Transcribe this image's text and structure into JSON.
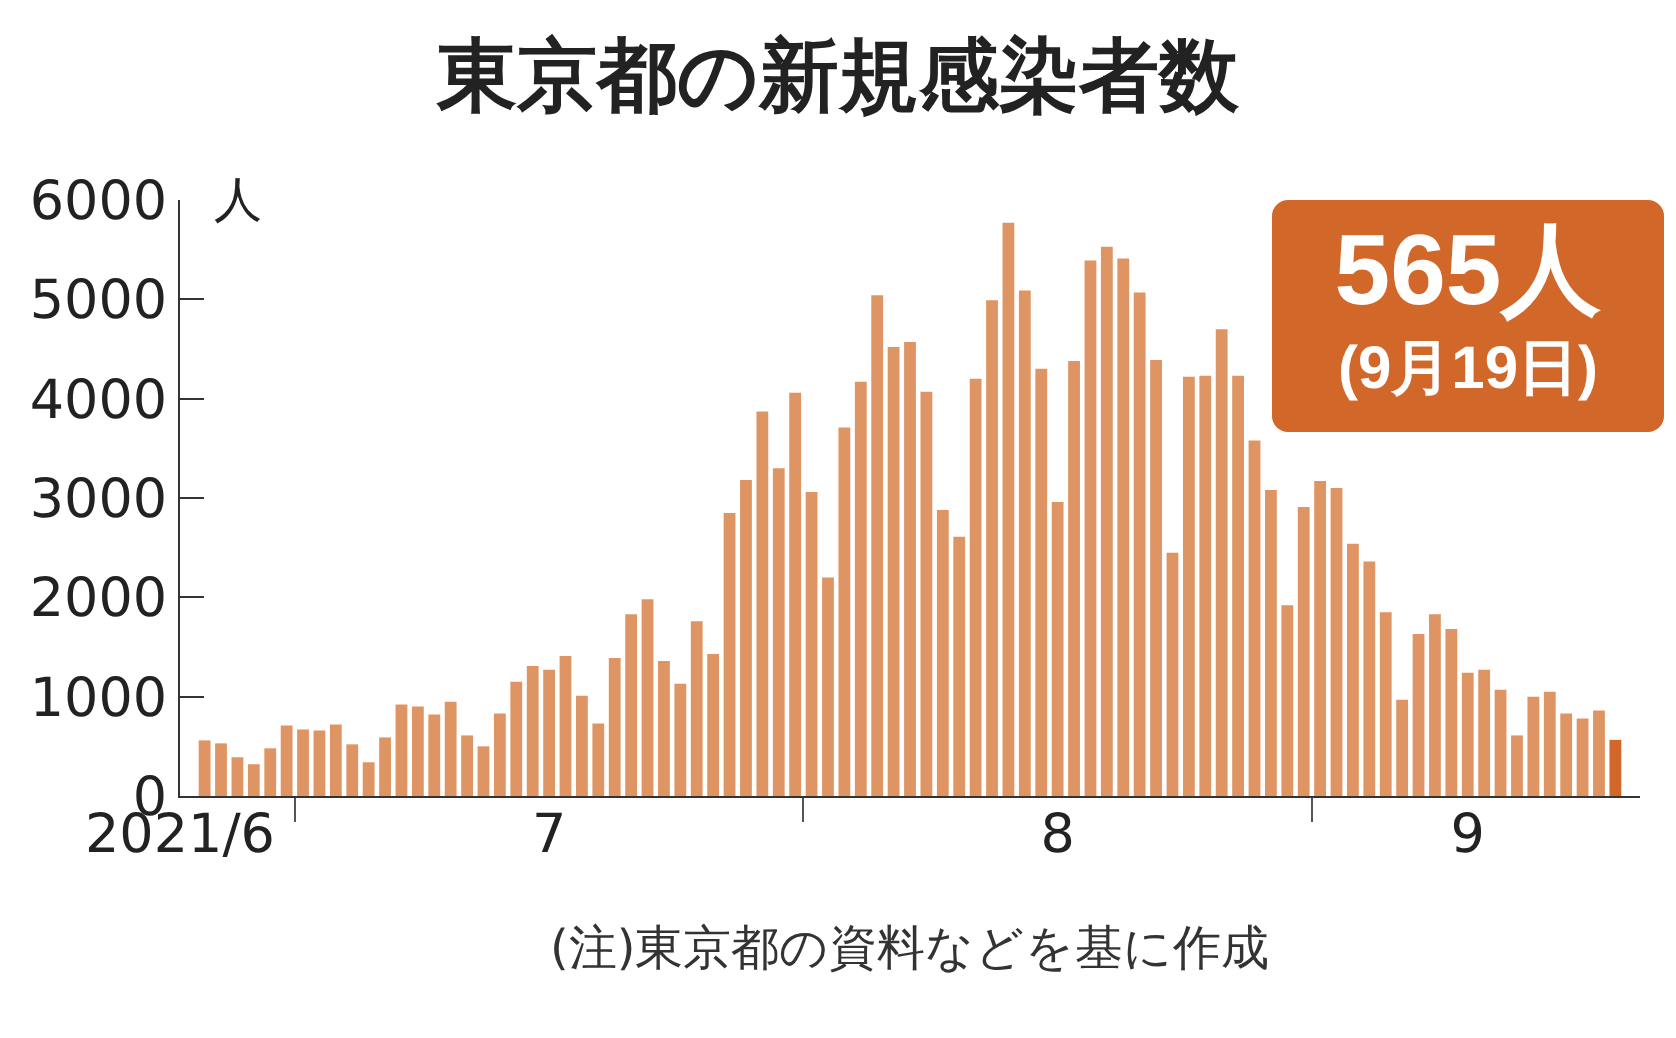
{
  "chart_data": {
    "type": "bar",
    "title": "東京都の新規感染者数",
    "ylabel": "人",
    "x": [
      "2021-06-25",
      "2021-06-26",
      "2021-06-27",
      "2021-06-28",
      "2021-06-29",
      "2021-06-30",
      "2021-07-01",
      "2021-07-02",
      "2021-07-03",
      "2021-07-04",
      "2021-07-05",
      "2021-07-06",
      "2021-07-07",
      "2021-07-08",
      "2021-07-09",
      "2021-07-10",
      "2021-07-11",
      "2021-07-12",
      "2021-07-13",
      "2021-07-14",
      "2021-07-15",
      "2021-07-16",
      "2021-07-17",
      "2021-07-18",
      "2021-07-19",
      "2021-07-20",
      "2021-07-21",
      "2021-07-22",
      "2021-07-23",
      "2021-07-24",
      "2021-07-25",
      "2021-07-26",
      "2021-07-27",
      "2021-07-28",
      "2021-07-29",
      "2021-07-30",
      "2021-07-31",
      "2021-08-01",
      "2021-08-02",
      "2021-08-03",
      "2021-08-04",
      "2021-08-05",
      "2021-08-06",
      "2021-08-07",
      "2021-08-08",
      "2021-08-09",
      "2021-08-10",
      "2021-08-11",
      "2021-08-12",
      "2021-08-13",
      "2021-08-14",
      "2021-08-15",
      "2021-08-16",
      "2021-08-17",
      "2021-08-18",
      "2021-08-19",
      "2021-08-20",
      "2021-08-21",
      "2021-08-22",
      "2021-08-23",
      "2021-08-24",
      "2021-08-25",
      "2021-08-26",
      "2021-08-27",
      "2021-08-28",
      "2021-08-29",
      "2021-08-30",
      "2021-08-31",
      "2021-09-01",
      "2021-09-02",
      "2021-09-03",
      "2021-09-04",
      "2021-09-05",
      "2021-09-06",
      "2021-09-07",
      "2021-09-08",
      "2021-09-09",
      "2021-09-10",
      "2021-09-11",
      "2021-09-12",
      "2021-09-13",
      "2021-09-14",
      "2021-09-15",
      "2021-09-16",
      "2021-09-17",
      "2021-09-18",
      "2021-09-19"
    ],
    "values": [
      560,
      530,
      390,
      320,
      480,
      710,
      670,
      660,
      720,
      520,
      340,
      590,
      920,
      900,
      820,
      950,
      610,
      500,
      830,
      1150,
      1310,
      1270,
      1410,
      1010,
      730,
      1390,
      1830,
      1980,
      1360,
      1130,
      1760,
      1430,
      2850,
      3180,
      3870,
      3300,
      4060,
      3060,
      2200,
      3710,
      4170,
      5040,
      4520,
      4570,
      4070,
      2880,
      2610,
      4200,
      4990,
      5770,
      5090,
      4300,
      2960,
      4380,
      5390,
      5530,
      5410,
      5070,
      4390,
      2450,
      4220,
      4230,
      4700,
      4230,
      3580,
      3080,
      1920,
      2910,
      3170,
      3100,
      2540,
      2360,
      1850,
      970,
      1630,
      1830,
      1680,
      1240,
      1270,
      1070,
      610,
      1000,
      1050,
      830,
      780,
      860,
      565
    ],
    "colors": [
      "#df9563",
      "#df9563",
      "#df9563",
      "#df9563",
      "#df9563",
      "#df9563",
      "#df9563",
      "#df9563",
      "#df9563",
      "#df9563",
      "#df9563",
      "#df9563",
      "#df9563",
      "#df9563",
      "#df9563",
      "#df9563",
      "#df9563",
      "#df9563",
      "#df9563",
      "#df9563",
      "#df9563",
      "#df9563",
      "#df9563",
      "#df9563",
      "#df9563",
      "#df9563",
      "#df9563",
      "#df9563",
      "#df9563",
      "#df9563",
      "#df9563",
      "#df9563",
      "#df9563",
      "#df9563",
      "#df9563",
      "#df9563",
      "#df9563",
      "#df9563",
      "#df9563",
      "#df9563",
      "#df9563",
      "#df9563",
      "#df9563",
      "#df9563",
      "#df9563",
      "#df9563",
      "#df9563",
      "#df9563",
      "#df9563",
      "#df9563",
      "#df9563",
      "#df9563",
      "#df9563",
      "#df9563",
      "#df9563",
      "#df9563",
      "#df9563",
      "#df9563",
      "#df9563",
      "#df9563",
      "#df9563",
      "#df9563",
      "#df9563",
      "#df9563",
      "#df9563",
      "#df9563",
      "#df9563",
      "#df9563",
      "#df9563",
      "#df9563",
      "#df9563",
      "#df9563",
      "#df9563",
      "#df9563",
      "#df9563",
      "#df9563",
      "#df9563",
      "#df9563",
      "#df9563",
      "#df9563",
      "#df9563",
      "#df9563",
      "#df9563",
      "#df9563",
      "#df9563",
      "#df9563",
      "#d2672a"
    ],
    "xlim": [
      "2021-06-23T12:00",
      "2021-09-20T12:00"
    ],
    "xticks": [
      {
        "value": "2021-06-30T12:00",
        "label": null
      },
      {
        "value": "2021-07-31T12:00",
        "label": null
      },
      {
        "value": "2021-08-31T12:00",
        "label": null
      },
      {
        "value": "2021-06-23T12:00",
        "label": "2021/6"
      },
      {
        "value": "2021-07-16",
        "label": "7"
      },
      {
        "value": "2021-08-16",
        "label": "8"
      },
      {
        "value": "2021-09-10",
        "label": "9"
      }
    ],
    "ylim": [
      0,
      6000
    ],
    "yticks": [
      0,
      1000,
      2000,
      3000,
      4000,
      5000,
      6000
    ],
    "grid": false,
    "annotations": [
      "565人\n(9月19日)",
      "(注)東京都の資料などを基に作成"
    ]
  }
}
